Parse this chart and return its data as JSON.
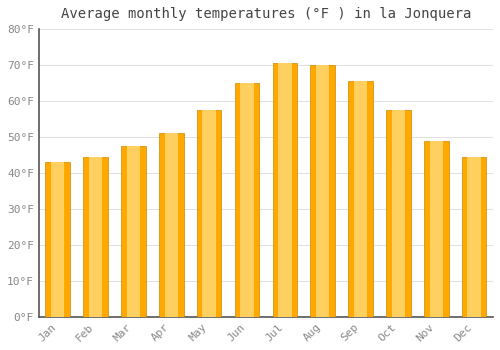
{
  "title": "Average monthly temperatures (°F ) in la Jonquera",
  "months": [
    "Jan",
    "Feb",
    "Mar",
    "Apr",
    "May",
    "Jun",
    "Jul",
    "Aug",
    "Sep",
    "Oct",
    "Nov",
    "Dec"
  ],
  "values": [
    43,
    44.5,
    47.5,
    51,
    57.5,
    65,
    70.5,
    70,
    65.5,
    57.5,
    49,
    44.5
  ],
  "bar_color": "#FFA800",
  "bar_highlight": "#FFD060",
  "background_color": "#FFFFFF",
  "grid_color": "#E0E0E0",
  "spine_color": "#555555",
  "ylim": [
    0,
    80
  ],
  "ytick_step": 10,
  "title_fontsize": 10,
  "tick_fontsize": 8,
  "tick_label_color": "#888888",
  "title_color": "#444444"
}
